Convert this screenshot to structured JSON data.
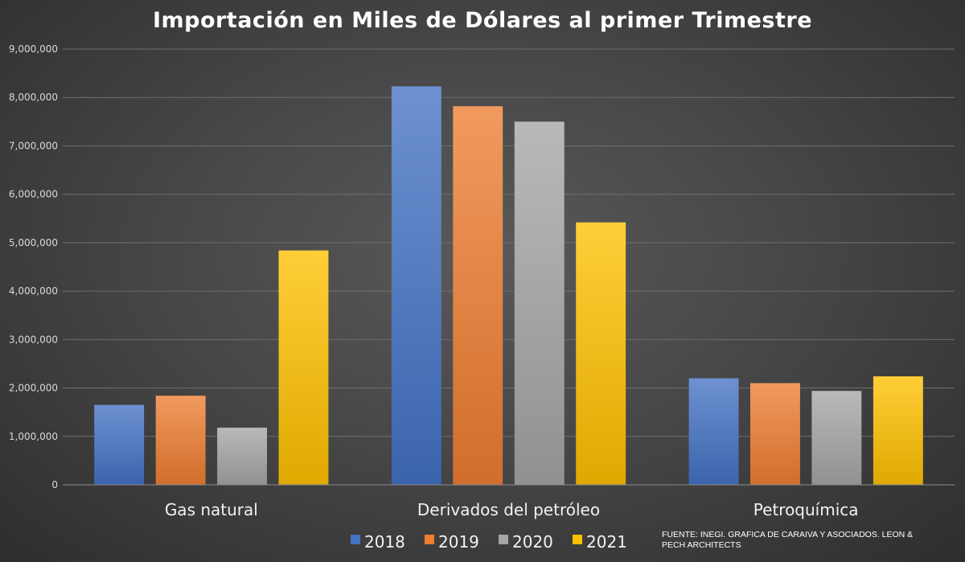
{
  "chart_data": {
    "type": "bar",
    "title": "Importación en Miles de Dólares al primer Trimestre",
    "xlabel": "",
    "ylabel": "",
    "categories": [
      "Gas natural",
      "Derivados del petróleo",
      "Petroquímica"
    ],
    "series": [
      {
        "name": "2018",
        "color": "#4472c4",
        "values": [
          1650000,
          8230000,
          2200000
        ]
      },
      {
        "name": "2019",
        "color": "#ed7d31",
        "values": [
          1840000,
          7820000,
          2100000
        ]
      },
      {
        "name": "2020",
        "color": "#a5a5a5",
        "values": [
          1180000,
          7500000,
          1940000
        ]
      },
      {
        "name": "2021",
        "color": "#ffc000",
        "values": [
          4840000,
          5420000,
          2240000
        ]
      }
    ],
    "ylim": [
      0,
      9000000
    ],
    "yticks": [
      "0",
      "1,000,000",
      "2,000,000",
      "3,000,000",
      "4,000,000",
      "5,000,000",
      "6,000,000",
      "7,000,000",
      "8,000,000",
      "9,000,000"
    ],
    "grid": true,
    "legend_position": "bottom"
  },
  "source_note": "FUENTE: INEGI. GRAFICA DE CARAIVA Y ASOCIADOS. LEON & PECH ARCHITECTS"
}
